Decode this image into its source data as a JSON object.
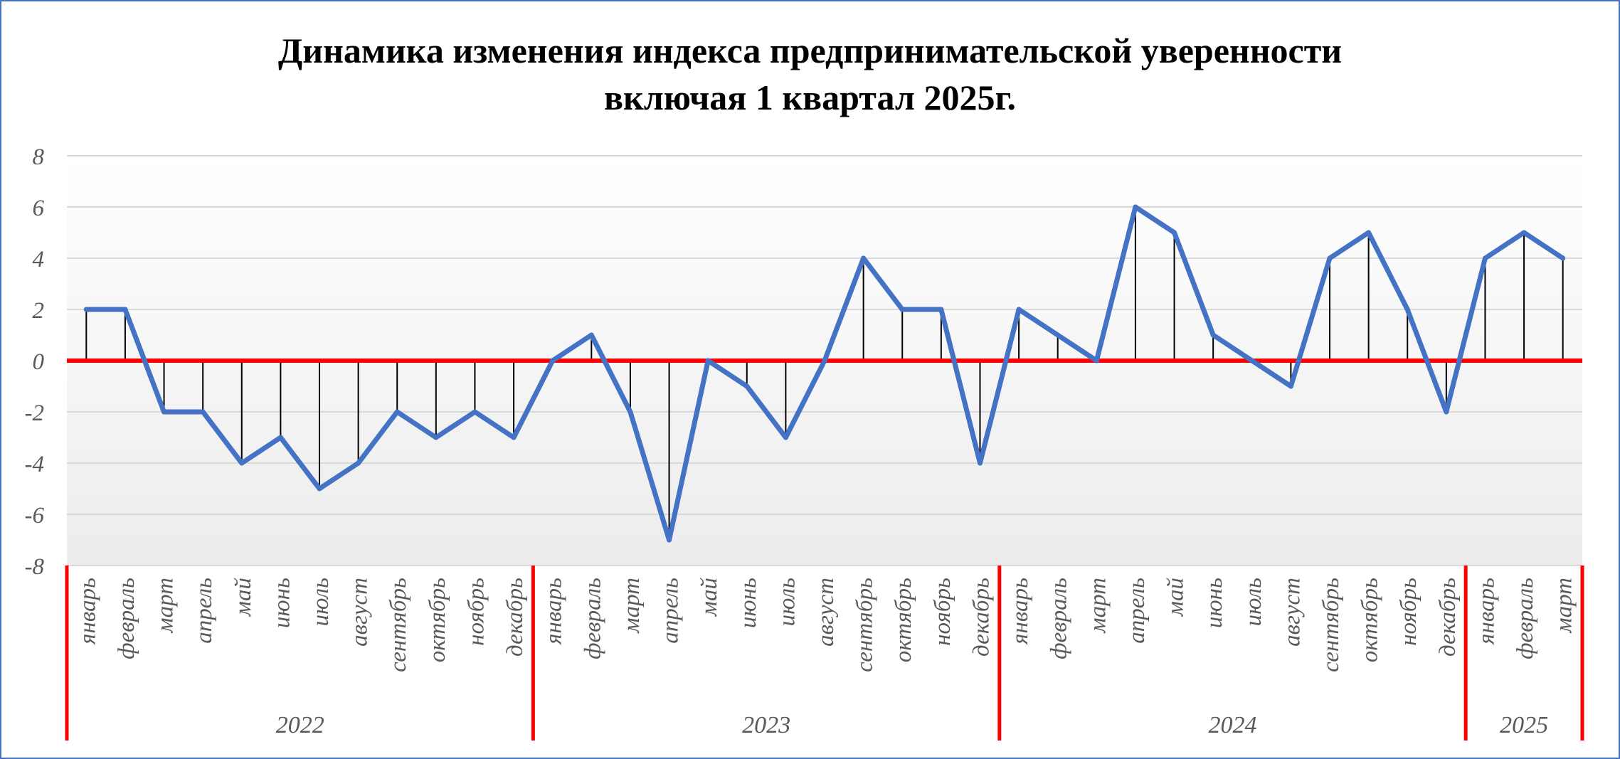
{
  "chart_data": {
    "type": "line",
    "title_lines": [
      "Динамика изменения индекса предпринимательской уверенности",
      "включая 1 квартал 2025г."
    ],
    "xlabel": "",
    "ylabel": "",
    "ylim": [
      -8,
      8
    ],
    "yticks": [
      8,
      6,
      4,
      2,
      0,
      -2,
      -4,
      -6,
      -8
    ],
    "grid": true,
    "legend": "none",
    "years": [
      {
        "label": "2022",
        "months": [
          "январь",
          "февраль",
          "март",
          "апрель",
          "май",
          "июнь",
          "июль",
          "август",
          "сентябрь",
          "октябрь",
          "ноябрь",
          "декабрь"
        ]
      },
      {
        "label": "2023",
        "months": [
          "январь",
          "февраль",
          "март",
          "апрель",
          "май",
          "июнь",
          "июль",
          "август",
          "сентябрь",
          "октябрь",
          "ноябрь",
          "декабрь"
        ]
      },
      {
        "label": "2024",
        "months": [
          "январь",
          "февраль",
          "март",
          "апрель",
          "май",
          "июнь",
          "июль",
          "август",
          "сентябрь",
          "октябрь",
          "ноябрь",
          "декабрь"
        ]
      },
      {
        "label": "2025",
        "months": [
          "январь",
          "февраль",
          "март"
        ]
      }
    ],
    "series": [
      {
        "values": [
          2,
          2,
          -2,
          -2,
          -4,
          -3,
          -5,
          -4,
          -2,
          -3,
          -2,
          -3,
          0,
          1,
          -2,
          -7,
          0,
          -1,
          -3,
          0,
          4,
          2,
          2,
          -4,
          2,
          1,
          0,
          6,
          5,
          1,
          0,
          -1,
          4,
          5,
          2,
          -2,
          4,
          5,
          4
        ],
        "color": "#4472c4"
      }
    ],
    "colors": {
      "line": "#4472c4",
      "zero_line": "#ff0000",
      "year_separator": "#ff0000",
      "drop_lines": "#000000",
      "grid": "#d9d9d9",
      "tick_text": "#595959",
      "frame": "#4472c4"
    }
  }
}
